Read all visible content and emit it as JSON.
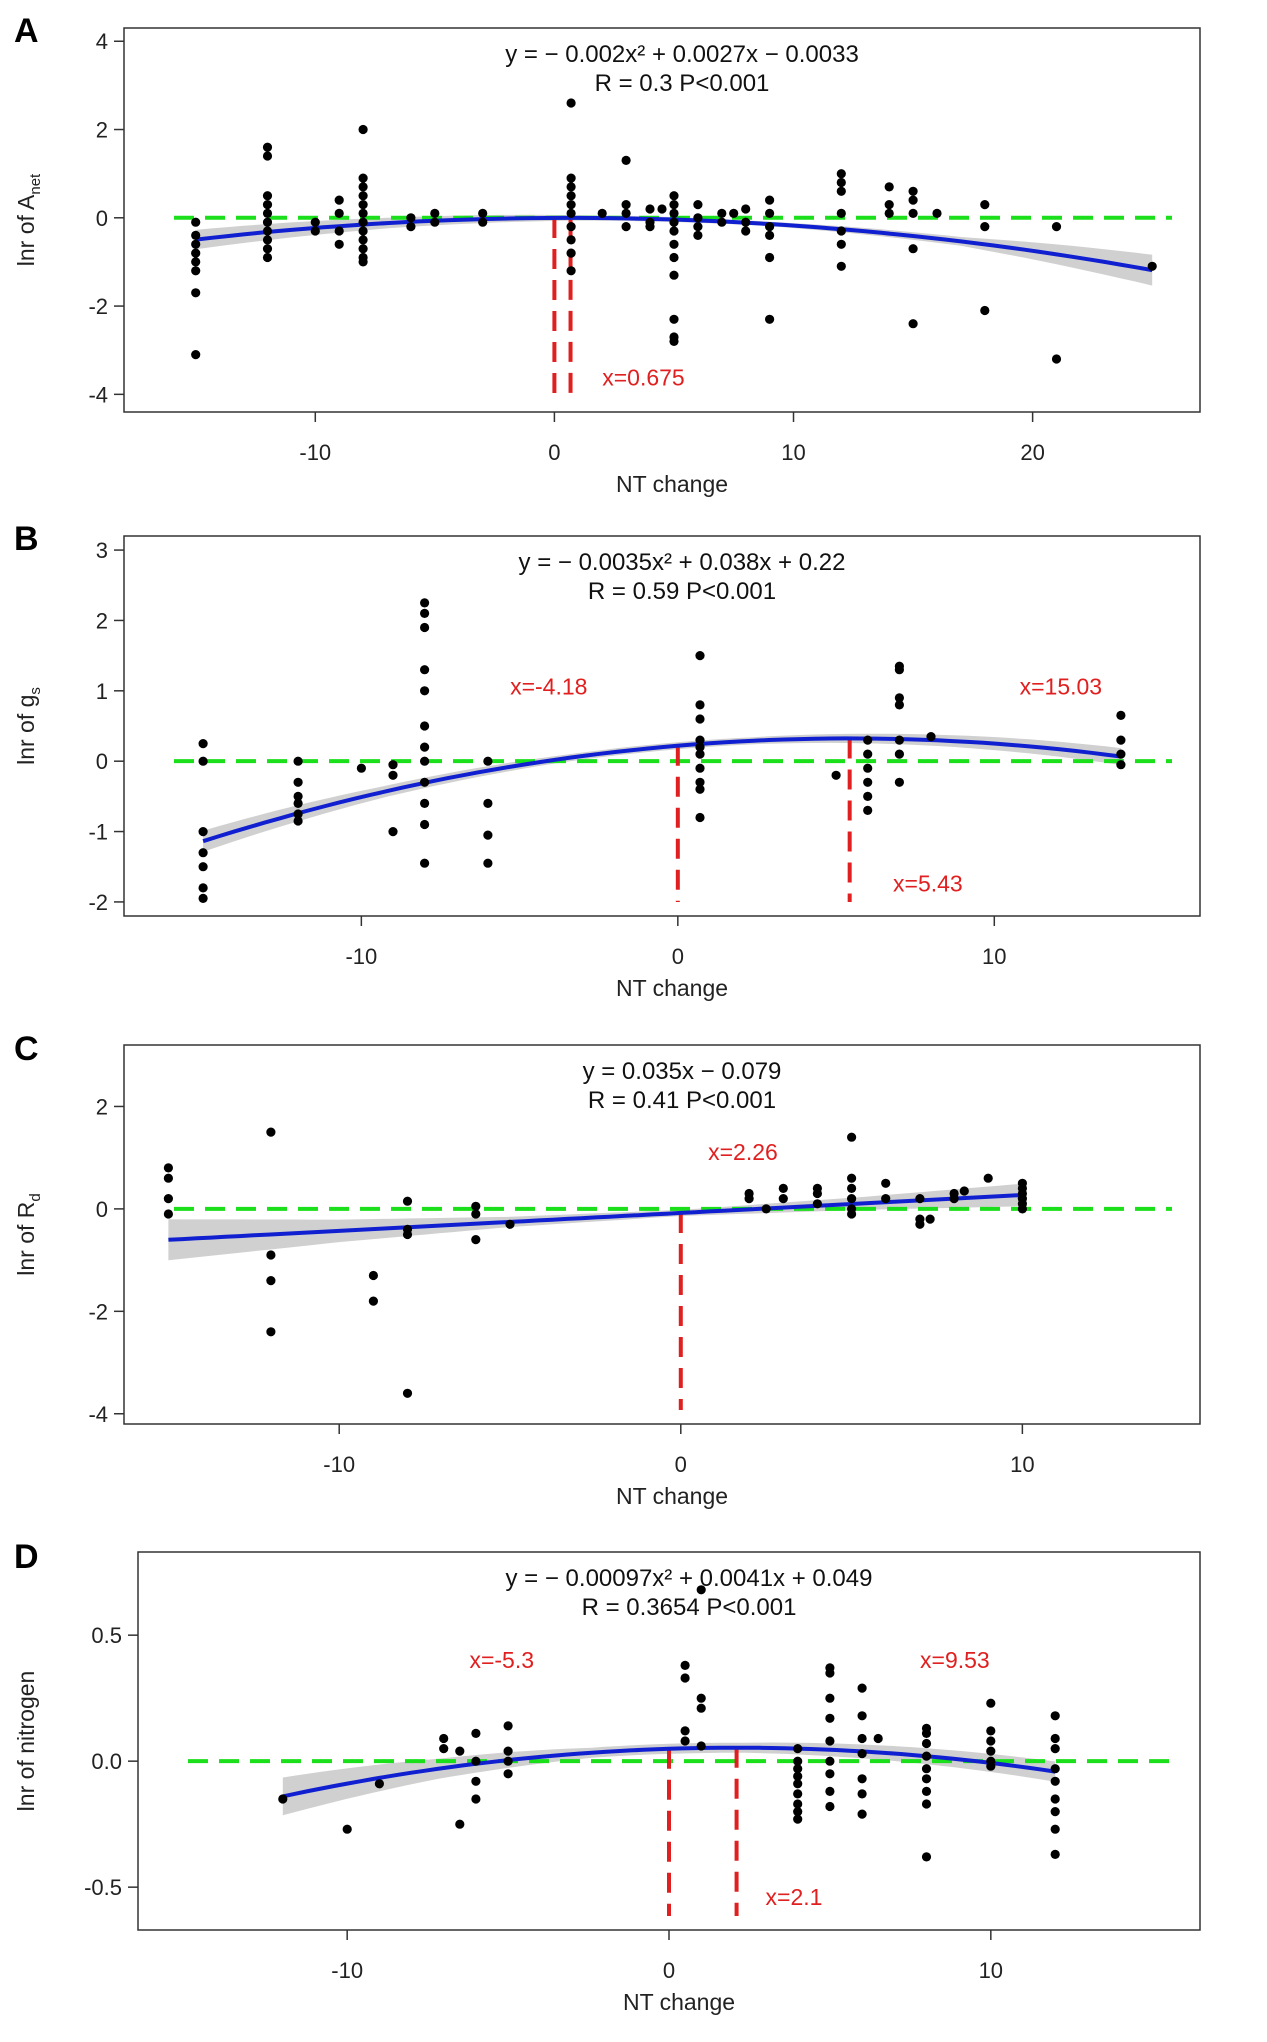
{
  "chart_data": [
    {
      "type": "scatter",
      "panel_label": "A",
      "xlabel": "NT change",
      "ylabel": "lnr of A",
      "ylabel_sub": "net",
      "xlim": [
        -18,
        27
      ],
      "ylim": [
        -4.4,
        4.3
      ],
      "xticks": [
        -10,
        0,
        10,
        20
      ],
      "yticks": [
        -4,
        -2,
        0,
        2,
        4
      ],
      "equation": "y = − 0.002x² + 0.0027x − 0.0033",
      "stats": "R = 0.3     P<0.001",
      "fit": {
        "type": "quadratic",
        "a": -0.002,
        "b": 0.0027,
        "c": -0.0033,
        "from": -15,
        "to": 25,
        "ci_width": [
          0.22,
          0.12,
          0.06,
          0.05,
          0.1,
          0.35
        ]
      },
      "reference_y": 0,
      "vlines": [
        0,
        0.675
      ],
      "annotations": [
        {
          "text": "x=0.675",
          "x": 2,
          "y": -3.8
        }
      ],
      "points": [
        [
          -15,
          -0.1
        ],
        [
          -15,
          -0.4
        ],
        [
          -15,
          -0.6
        ],
        [
          -15,
          -0.8
        ],
        [
          -15,
          -1.0
        ],
        [
          -15,
          -1.2
        ],
        [
          -15,
          -1.7
        ],
        [
          -15,
          -3.1
        ],
        [
          -12,
          1.6
        ],
        [
          -12,
          1.4
        ],
        [
          -12,
          0.5
        ],
        [
          -12,
          0.3
        ],
        [
          -12,
          0.1
        ],
        [
          -12,
          -0.1
        ],
        [
          -12,
          -0.3
        ],
        [
          -12,
          -0.5
        ],
        [
          -12,
          -0.7
        ],
        [
          -12,
          -0.9
        ],
        [
          -10,
          -0.1
        ],
        [
          -10,
          -0.3
        ],
        [
          -9,
          0.4
        ],
        [
          -9,
          0.1
        ],
        [
          -9,
          -0.3
        ],
        [
          -9,
          -0.6
        ],
        [
          -8,
          2.0
        ],
        [
          -8,
          0.9
        ],
        [
          -8,
          0.7
        ],
        [
          -8,
          0.5
        ],
        [
          -8,
          0.3
        ],
        [
          -8,
          0.1
        ],
        [
          -8,
          -0.1
        ],
        [
          -8,
          -0.3
        ],
        [
          -8,
          -0.5
        ],
        [
          -8,
          -0.7
        ],
        [
          -8,
          -0.9
        ],
        [
          -8,
          -1.0
        ],
        [
          -6,
          0.0
        ],
        [
          -6,
          -0.2
        ],
        [
          -5,
          -0.1
        ],
        [
          -5,
          0.1
        ],
        [
          -3,
          0.1
        ],
        [
          -3,
          -0.1
        ],
        [
          0.7,
          2.6
        ],
        [
          0.7,
          0.9
        ],
        [
          0.7,
          0.7
        ],
        [
          0.7,
          0.5
        ],
        [
          0.7,
          0.3
        ],
        [
          0.7,
          0.1
        ],
        [
          0.7,
          -0.2
        ],
        [
          0.7,
          -0.5
        ],
        [
          0.7,
          -0.8
        ],
        [
          0.7,
          -1.2
        ],
        [
          2,
          0.1
        ],
        [
          3,
          1.3
        ],
        [
          3,
          0.3
        ],
        [
          3,
          0.1
        ],
        [
          3,
          -0.2
        ],
        [
          4,
          0.2
        ],
        [
          4,
          -0.1
        ],
        [
          4,
          -0.2
        ],
        [
          4.5,
          0.2
        ],
        [
          5,
          0.5
        ],
        [
          5,
          0.3
        ],
        [
          5,
          0.1
        ],
        [
          5,
          -0.1
        ],
        [
          5,
          -0.3
        ],
        [
          5,
          -0.6
        ],
        [
          5,
          -0.9
        ],
        [
          5,
          -1.3
        ],
        [
          5,
          -2.3
        ],
        [
          5,
          -2.7
        ],
        [
          5,
          -2.8
        ],
        [
          6,
          0.3
        ],
        [
          6,
          0.0
        ],
        [
          6,
          -0.2
        ],
        [
          6,
          -0.4
        ],
        [
          7,
          0.1
        ],
        [
          7,
          -0.1
        ],
        [
          7.5,
          0.1
        ],
        [
          8,
          0.2
        ],
        [
          8,
          -0.1
        ],
        [
          8,
          -0.3
        ],
        [
          9,
          0.4
        ],
        [
          9,
          0.1
        ],
        [
          9,
          -0.2
        ],
        [
          9,
          -0.4
        ],
        [
          9,
          -0.9
        ],
        [
          9,
          -2.3
        ],
        [
          12,
          1.0
        ],
        [
          12,
          0.8
        ],
        [
          12,
          0.6
        ],
        [
          12,
          0.1
        ],
        [
          12,
          -0.3
        ],
        [
          12,
          -0.6
        ],
        [
          12,
          -1.1
        ],
        [
          14,
          0.7
        ],
        [
          14,
          0.3
        ],
        [
          14,
          0.1
        ],
        [
          15,
          0.6
        ],
        [
          15,
          0.4
        ],
        [
          15,
          0.1
        ],
        [
          15,
          -0.7
        ],
        [
          15,
          -2.4
        ],
        [
          16,
          0.1
        ],
        [
          18,
          0.3
        ],
        [
          18,
          -0.2
        ],
        [
          18,
          -2.1
        ],
        [
          21,
          -0.2
        ],
        [
          21,
          -3.2
        ],
        [
          25,
          -1.1
        ]
      ]
    },
    {
      "type": "scatter",
      "panel_label": "B",
      "xlabel": "NT change",
      "ylabel": "lnr of g",
      "ylabel_sub": "s",
      "xlim": [
        -17.5,
        16.5
      ],
      "ylim": [
        -2.2,
        3.2
      ],
      "xticks": [
        -10,
        0,
        10
      ],
      "yticks": [
        -2,
        -1,
        0,
        1,
        2,
        3
      ],
      "equation": "y = − 0.0035x² + 0.038x + 0.22",
      "stats": "R = 0.59     P<0.001",
      "fit": {
        "type": "quadratic",
        "a": -0.0035,
        "b": 0.038,
        "c": 0.22,
        "from": -15,
        "to": 14,
        "ci_width": [
          0.15,
          0.08,
          0.05,
          0.05,
          0.08,
          0.12
        ]
      },
      "reference_y": 0,
      "vlines": [
        0,
        5.43
      ],
      "annotations": [
        {
          "text": "x=-4.18",
          "x": -5.3,
          "y": 0.95
        },
        {
          "text": "x=15.03",
          "x": 10.8,
          "y": 0.95
        },
        {
          "text": "x=5.43",
          "x": 6.8,
          "y": -1.85
        }
      ],
      "points": [
        [
          -15,
          0.25
        ],
        [
          -15,
          0.0
        ],
        [
          -15,
          -1.0
        ],
        [
          -15,
          -1.3
        ],
        [
          -15,
          -1.5
        ],
        [
          -15,
          -1.8
        ],
        [
          -15,
          -1.95
        ],
        [
          -12,
          0.0
        ],
        [
          -12,
          -0.3
        ],
        [
          -12,
          -0.5
        ],
        [
          -12,
          -0.6
        ],
        [
          -12,
          -0.75
        ],
        [
          -12,
          -0.85
        ],
        [
          -10,
          -0.1
        ],
        [
          -9,
          -0.05
        ],
        [
          -9,
          -0.2
        ],
        [
          -9,
          -1.0
        ],
        [
          -8,
          2.25
        ],
        [
          -8,
          2.1
        ],
        [
          -8,
          1.9
        ],
        [
          -8,
          1.3
        ],
        [
          -8,
          1.0
        ],
        [
          -8,
          0.5
        ],
        [
          -8,
          0.2
        ],
        [
          -8,
          0.0
        ],
        [
          -8,
          -0.3
        ],
        [
          -8,
          -0.6
        ],
        [
          -8,
          -0.9
        ],
        [
          -8,
          -1.45
        ],
        [
          -6,
          0.0
        ],
        [
          -6,
          -0.6
        ],
        [
          -6,
          -1.05
        ],
        [
          -6,
          -1.45
        ],
        [
          0.7,
          1.5
        ],
        [
          0.7,
          0.8
        ],
        [
          0.7,
          0.6
        ],
        [
          0.7,
          0.3
        ],
        [
          0.7,
          0.2
        ],
        [
          0.7,
          0.1
        ],
        [
          0.7,
          -0.1
        ],
        [
          0.7,
          -0.3
        ],
        [
          0.7,
          -0.4
        ],
        [
          0.7,
          -0.8
        ],
        [
          5,
          -0.2
        ],
        [
          6,
          0.3
        ],
        [
          6,
          0.1
        ],
        [
          6,
          -0.1
        ],
        [
          6,
          -0.3
        ],
        [
          6,
          -0.5
        ],
        [
          6,
          -0.7
        ],
        [
          7,
          1.35
        ],
        [
          7,
          1.3
        ],
        [
          7,
          0.9
        ],
        [
          7,
          0.8
        ],
        [
          7,
          0.3
        ],
        [
          7,
          0.1
        ],
        [
          7,
          -0.3
        ],
        [
          8,
          0.35
        ],
        [
          14,
          0.65
        ],
        [
          14,
          0.3
        ],
        [
          14,
          0.1
        ],
        [
          14,
          -0.05
        ]
      ]
    },
    {
      "type": "scatter",
      "panel_label": "C",
      "xlabel": "NT change",
      "ylabel": "lnr of R",
      "ylabel_sub": "d",
      "xlim": [
        -16.3,
        15.2
      ],
      "ylim": [
        -4.2,
        3.2
      ],
      "xticks": [
        -10,
        0,
        10
      ],
      "yticks": [
        -4,
        -2,
        0,
        2
      ],
      "equation": "y = 0.035x − 0.079",
      "stats": "R = 0.41     P<0.001",
      "fit": {
        "type": "linear",
        "a": 0,
        "b": 0.035,
        "c": -0.079,
        "from": -15,
        "to": 10,
        "ci_width": [
          0.4,
          0.22,
          0.1,
          0.06,
          0.12,
          0.22
        ]
      },
      "reference_y": 0,
      "vlines": [
        0
      ],
      "annotations": [
        {
          "text": "x=2.26",
          "x": 0.8,
          "y": 0.95
        }
      ],
      "points": [
        [
          -15,
          0.8
        ],
        [
          -15,
          0.6
        ],
        [
          -15,
          0.2
        ],
        [
          -15,
          -0.1
        ],
        [
          -12,
          1.5
        ],
        [
          -12,
          -0.9
        ],
        [
          -12,
          -1.4
        ],
        [
          -12,
          -2.4
        ],
        [
          -9,
          -1.3
        ],
        [
          -9,
          -1.8
        ],
        [
          -8,
          0.15
        ],
        [
          -8,
          -0.4
        ],
        [
          -8,
          -0.5
        ],
        [
          -8,
          -3.6
        ],
        [
          -6,
          0.05
        ],
        [
          -6,
          -0.1
        ],
        [
          -6,
          -0.6
        ],
        [
          -5,
          -0.3
        ],
        [
          2,
          0.3
        ],
        [
          2,
          0.2
        ],
        [
          2.5,
          0.0
        ],
        [
          3,
          0.4
        ],
        [
          3,
          0.2
        ],
        [
          4,
          0.4
        ],
        [
          4,
          0.3
        ],
        [
          4,
          0.1
        ],
        [
          5,
          1.4
        ],
        [
          5,
          0.6
        ],
        [
          5,
          0.4
        ],
        [
          5,
          0.2
        ],
        [
          5,
          0.0
        ],
        [
          5,
          -0.1
        ],
        [
          6,
          0.5
        ],
        [
          6,
          0.2
        ],
        [
          7,
          0.2
        ],
        [
          7,
          -0.2
        ],
        [
          7,
          -0.3
        ],
        [
          7.3,
          -0.2
        ],
        [
          8,
          0.3
        ],
        [
          8,
          0.2
        ],
        [
          8.3,
          0.35
        ],
        [
          9,
          0.6
        ],
        [
          10,
          0.5
        ],
        [
          10,
          0.4
        ],
        [
          10,
          0.3
        ],
        [
          10,
          0.2
        ],
        [
          10,
          0.1
        ],
        [
          10,
          0.0
        ]
      ]
    },
    {
      "type": "scatter",
      "panel_label": "D",
      "xlabel": "NT change",
      "ylabel": "lnr of nitrogen",
      "ylabel_sub": "",
      "xlim": [
        -16.5,
        16.5
      ],
      "ylim": [
        -0.67,
        0.83
      ],
      "xticks": [
        -10,
        0,
        10
      ],
      "yticks": [
        -0.5,
        0.0,
        0.5
      ],
      "ytick_labels": [
        "-0.5",
        "0.0",
        "0.5"
      ],
      "equation": "y = − 0.00097x² + 0.0041x + 0.049",
      "stats": "R = 0.3654     P<0.001",
      "fit": {
        "type": "quadratic",
        "a": -0.00097,
        "b": 0.0041,
        "c": 0.049,
        "from": -12,
        "to": 12,
        "ci_width": [
          0.075,
          0.04,
          0.02,
          0.02,
          0.03,
          0.04
        ]
      },
      "reference_y": 0,
      "vlines": [
        0,
        2.1
      ],
      "annotations": [
        {
          "text": "x=-5.3",
          "x": -6.2,
          "y": 0.37
        },
        {
          "text": "x=9.53",
          "x": 7.8,
          "y": 0.37
        },
        {
          "text": "x=2.1",
          "x": 3.0,
          "y": -0.57
        }
      ],
      "points": [
        [
          -12,
          -0.15
        ],
        [
          -10,
          -0.27
        ],
        [
          -9,
          -0.09
        ],
        [
          -7,
          0.09
        ],
        [
          -7,
          0.05
        ],
        [
          -6.5,
          0.04
        ],
        [
          -6.5,
          -0.25
        ],
        [
          -6,
          0.11
        ],
        [
          -6,
          0.0
        ],
        [
          -6,
          -0.08
        ],
        [
          -6,
          -0.15
        ],
        [
          -5,
          0.14
        ],
        [
          -5,
          0.04
        ],
        [
          -5,
          0.0
        ],
        [
          -5,
          -0.05
        ],
        [
          0.5,
          0.38
        ],
        [
          0.5,
          0.33
        ],
        [
          0.5,
          0.12
        ],
        [
          0.5,
          0.08
        ],
        [
          1,
          0.68
        ],
        [
          1,
          0.25
        ],
        [
          1,
          0.21
        ],
        [
          1,
          0.06
        ],
        [
          4,
          0.05
        ],
        [
          4,
          0.0
        ],
        [
          4,
          -0.03
        ],
        [
          4,
          -0.06
        ],
        [
          4,
          -0.09
        ],
        [
          4,
          -0.13
        ],
        [
          4,
          -0.17
        ],
        [
          4,
          -0.2
        ],
        [
          4,
          -0.23
        ],
        [
          5,
          0.37
        ],
        [
          5,
          0.35
        ],
        [
          5,
          0.25
        ],
        [
          5,
          0.17
        ],
        [
          5,
          0.08
        ],
        [
          5,
          0.0
        ],
        [
          5,
          -0.05
        ],
        [
          5,
          -0.12
        ],
        [
          5,
          -0.18
        ],
        [
          6,
          0.29
        ],
        [
          6,
          0.18
        ],
        [
          6,
          0.09
        ],
        [
          6,
          0.03
        ],
        [
          6,
          -0.07
        ],
        [
          6,
          -0.13
        ],
        [
          6,
          -0.21
        ],
        [
          6.5,
          0.09
        ],
        [
          8,
          0.13
        ],
        [
          8,
          0.11
        ],
        [
          8,
          0.07
        ],
        [
          8,
          0.02
        ],
        [
          8,
          -0.03
        ],
        [
          8,
          -0.07
        ],
        [
          8,
          -0.12
        ],
        [
          8,
          -0.17
        ],
        [
          8,
          -0.38
        ],
        [
          10,
          0.23
        ],
        [
          10,
          0.12
        ],
        [
          10,
          0.08
        ],
        [
          10,
          0.04
        ],
        [
          10,
          0.0
        ],
        [
          10,
          -0.02
        ],
        [
          12,
          0.18
        ],
        [
          12,
          0.09
        ],
        [
          12,
          0.05
        ],
        [
          12,
          -0.03
        ],
        [
          12,
          -0.08
        ],
        [
          12,
          -0.15
        ],
        [
          12,
          -0.2
        ],
        [
          12,
          -0.27
        ],
        [
          12,
          -0.37
        ]
      ]
    }
  ]
}
